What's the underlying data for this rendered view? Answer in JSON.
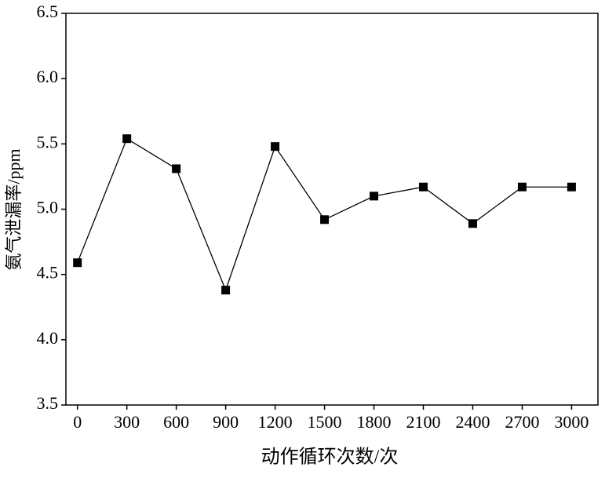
{
  "chart_data": {
    "type": "line",
    "x_label": "动作循环次数/次",
    "y_label": "氨气泄漏率/ppm",
    "x": [
      0,
      300,
      600,
      900,
      1200,
      1500,
      1800,
      2100,
      2400,
      2700,
      3000
    ],
    "series": [
      {
        "name": "氨气泄漏率",
        "color": "#000000",
        "values": [
          4.59,
          5.54,
          5.31,
          4.38,
          5.48,
          4.92,
          5.1,
          5.17,
          4.89,
          5.17,
          5.17
        ]
      }
    ],
    "xlim": [
      -70,
      3160
    ],
    "xticks": [
      0,
      300,
      600,
      900,
      1200,
      1500,
      1800,
      2100,
      2400,
      2700,
      3000
    ],
    "ylim": [
      3.5,
      6.5
    ],
    "yticks": [
      3.5,
      {
        "value": 4,
        "label": "4.0"
      },
      4.5,
      {
        "value": 5,
        "label": "5.0"
      },
      5.5,
      {
        "value": 6,
        "label": "6.0"
      },
      6.5
    ],
    "grid": false
  }
}
